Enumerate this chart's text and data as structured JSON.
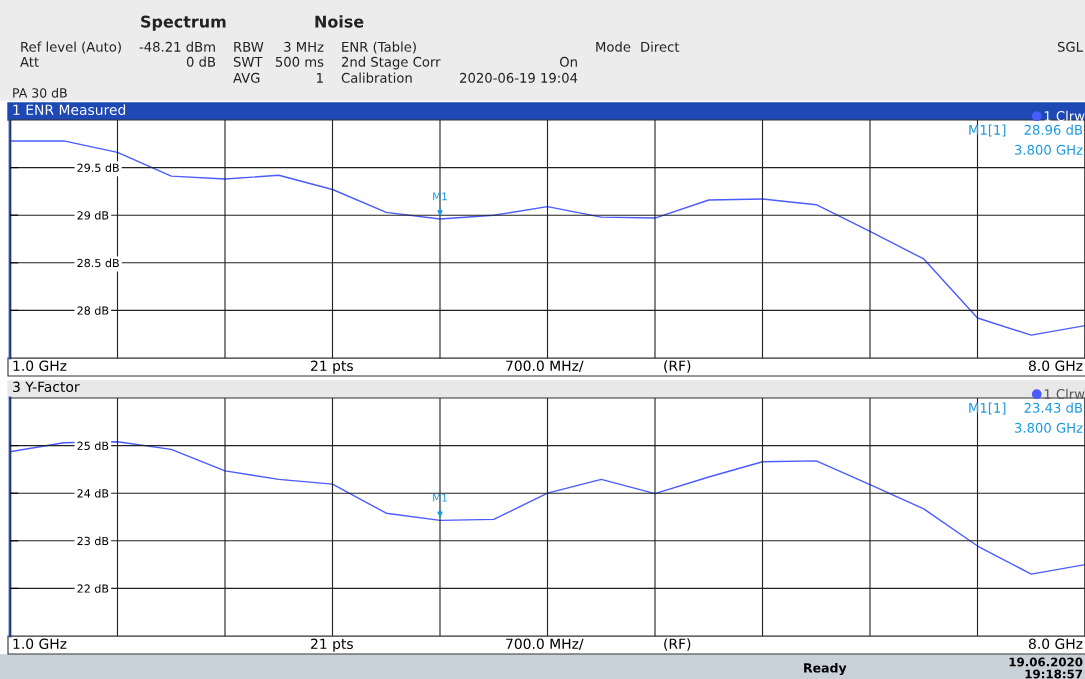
{
  "chart_data": [
    {
      "type": "line",
      "title": "1 ENR Measured",
      "categories": [
        null,
        null,
        null,
        null,
        null,
        null,
        null,
        null,
        null,
        null,
        null,
        null,
        null,
        null,
        null,
        null,
        null,
        null,
        null,
        null,
        null
      ],
      "series": [
        {
          "name": "1 Clrw",
          "color": "#4a5cff",
          "values": [
            29.78,
            29.78,
            29.66,
            29.41,
            29.38,
            29.42,
            29.27,
            29.03,
            28.96,
            29.0,
            29.09,
            28.98,
            28.97,
            29.16,
            29.17,
            29.11,
            28.83,
            28.54,
            27.92,
            27.74,
            27.84
          ]
        }
      ],
      "ylim": [
        27.5,
        30.0
      ],
      "yticks": [
        {
          "value": 28,
          "label": "28 dB"
        },
        {
          "value": 28.5,
          "label": "28.5 dB"
        },
        {
          "value": 29,
          "label": "29 dB"
        },
        {
          "value": 29.5,
          "label": "29.5 dB"
        }
      ],
      "tick_labels": "y",
      "grid": true,
      "legend": "top right",
      "marker": "none",
      "line_style": "solid",
      "annotations": [
        "Spectrum",
        "Noise",
        "Ref level (Auto)",
        "-48.21 dBm",
        "Att",
        "0 dB",
        "RBW",
        "3 MHz",
        "SWT",
        "500 ms",
        "AVG",
        "1",
        "ENR (Table)",
        "2nd Stage Corr",
        "On",
        "Calibration",
        "2020-06-19 19:04",
        "Mode",
        "Direct",
        "SGL",
        "PA 30 dB",
        "1.0 GHz",
        "21 pts",
        "700.0 MHz/",
        "(RF)",
        "8.0 GHz",
        "M1[1]",
        "28.96 dB",
        "3.800 GHz",
        {
          "text": "M1",
          "y": 28.96
        }
      ]
    },
    {
      "type": "line",
      "title": "3 Y-Factor",
      "categories": [
        null,
        null,
        null,
        null,
        null,
        null,
        null,
        null,
        null,
        null,
        null,
        null,
        null,
        null,
        null,
        null,
        null,
        null,
        null,
        null,
        null
      ],
      "series": [
        {
          "name": "1 Clrw",
          "color": "#4a5cff",
          "values": [
            24.87,
            25.06,
            25.08,
            24.92,
            24.47,
            24.29,
            24.19,
            23.58,
            23.43,
            23.45,
            24.0,
            24.29,
            23.99,
            24.34,
            24.66,
            24.68,
            24.18,
            23.67,
            22.89,
            22.3,
            22.5
          ]
        }
      ],
      "ylim": [
        21.0,
        26.0
      ],
      "yticks": [
        {
          "value": 22,
          "label": "22 dB"
        },
        {
          "value": 23,
          "label": "23 dB"
        },
        {
          "value": 24,
          "label": "24 dB"
        },
        {
          "value": 25,
          "label": "25 dB"
        }
      ],
      "tick_labels": "y",
      "grid": true,
      "legend": "top right",
      "marker": "none",
      "line_style": "solid",
      "annotations": [
        "1.0 GHz",
        "21 pts",
        "700.0 MHz/",
        "(RF)",
        "8.0 GHz",
        "M1[1]",
        "23.43 dB",
        "3.800 GHz",
        "Ready",
        "19.06.2020",
        "19:18:57",
        {
          "text": "M1",
          "y": 23.43
        }
      ]
    }
  ]
}
